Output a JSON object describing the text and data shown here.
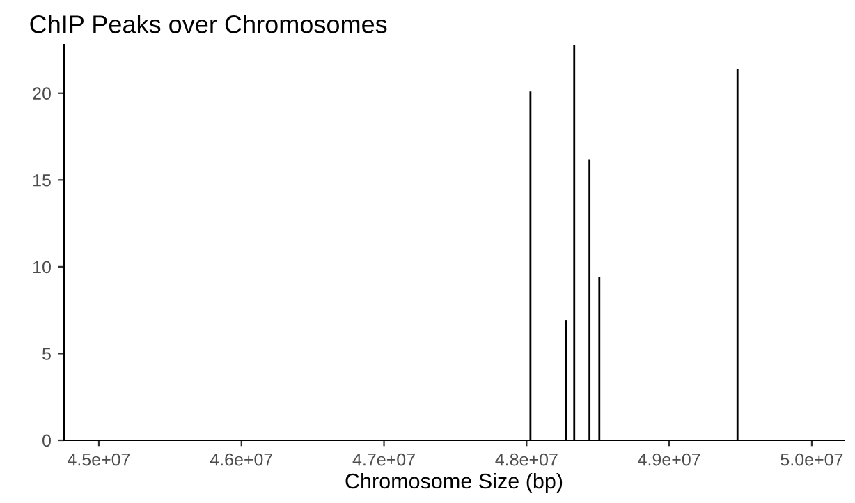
{
  "chart_data": {
    "type": "bar",
    "title": "ChIP Peaks over Chromosomes",
    "xlabel": "Chromosome Size (bp)",
    "x": [
      48027000,
      48275000,
      48334000,
      48441000,
      48510000,
      49479000
    ],
    "values": [
      20.1,
      6.9,
      22.8,
      16.2,
      9.4,
      21.4
    ],
    "color": "#000000",
    "xlim": [
      44756000,
      50225000
    ],
    "xticks": [
      {
        "value": 45000000,
        "label": "4.5e+07"
      },
      {
        "value": 46000000,
        "label": "4.6e+07"
      },
      {
        "value": 47000000,
        "label": "4.7e+07"
      },
      {
        "value": 48000000,
        "label": "4.8e+07"
      },
      {
        "value": 49000000,
        "label": "4.9e+07"
      },
      {
        "value": 50000000,
        "label": "5.0e+07"
      }
    ],
    "ylim": [
      0,
      22.8
    ],
    "yticks": [
      0,
      5,
      10,
      15,
      20
    ],
    "grid": false,
    "legend": false
  }
}
